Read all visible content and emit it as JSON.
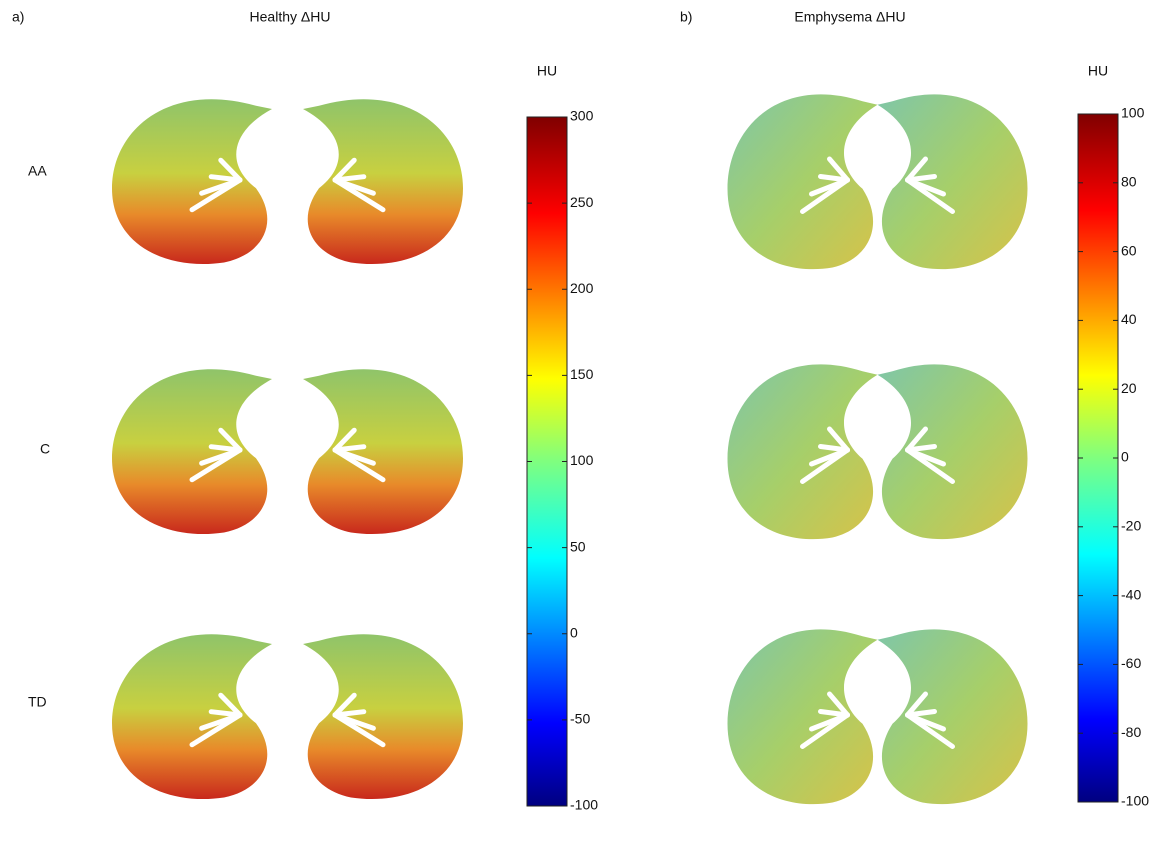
{
  "panels": [
    {
      "label": "a)",
      "title": "Healthy ΔHU",
      "rows": [
        "AA",
        "C",
        "TD"
      ],
      "colorbar": {
        "label": "HU",
        "lim": [
          -100,
          300
        ],
        "ticks": [
          300,
          250,
          200,
          150,
          100,
          50,
          0,
          -50,
          -100
        ]
      }
    },
    {
      "label": "b)",
      "title": "Emphysema ΔHU",
      "colorbar": {
        "label": "HU",
        "lim": [
          -100,
          100
        ],
        "ticks": [
          100,
          80,
          60,
          40,
          20,
          0,
          -20,
          -40,
          -60,
          -80,
          -100
        ]
      }
    }
  ]
}
